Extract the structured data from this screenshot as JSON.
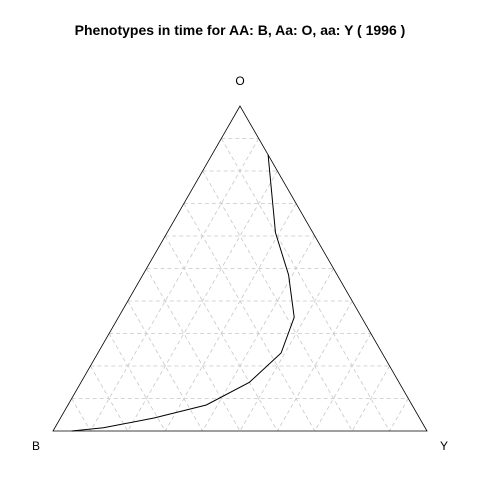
{
  "chart_data": {
    "type": "ternary",
    "title": "Phenotypes in time for  AA: B, Aa: O, aa: Y  ( 1996 )",
    "vertices": {
      "top": "O",
      "left": "B",
      "right": "Y"
    },
    "grid": {
      "on": true,
      "step": 0.1,
      "style": "dashed"
    },
    "series": [
      {
        "points": [
          {
            "B": 0.0,
            "O": 0.85,
            "Y": 0.15
          },
          {
            "B": 0.05,
            "O": 0.73,
            "Y": 0.22
          },
          {
            "B": 0.1,
            "O": 0.61,
            "Y": 0.29
          },
          {
            "B": 0.13,
            "O": 0.48,
            "Y": 0.39
          },
          {
            "B": 0.18,
            "O": 0.35,
            "Y": 0.47
          },
          {
            "B": 0.27,
            "O": 0.24,
            "Y": 0.49
          },
          {
            "B": 0.4,
            "O": 0.15,
            "Y": 0.45
          },
          {
            "B": 0.55,
            "O": 0.08,
            "Y": 0.37
          },
          {
            "B": 0.71,
            "O": 0.04,
            "Y": 0.25
          },
          {
            "B": 0.86,
            "O": 0.01,
            "Y": 0.13
          },
          {
            "B": 0.95,
            "O": 0.0,
            "Y": 0.05
          }
        ]
      }
    ]
  }
}
